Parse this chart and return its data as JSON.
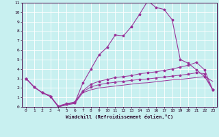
{
  "xlabel": "Windchill (Refroidissement éolien,°C)",
  "xlim": [
    -0.5,
    23.5
  ],
  "ylim": [
    0,
    11
  ],
  "xticks": [
    0,
    1,
    2,
    3,
    4,
    5,
    6,
    7,
    8,
    9,
    10,
    11,
    12,
    13,
    14,
    15,
    16,
    17,
    18,
    19,
    20,
    21,
    22,
    23
  ],
  "yticks": [
    0,
    1,
    2,
    3,
    4,
    5,
    6,
    7,
    8,
    9,
    10,
    11
  ],
  "background_color": "#c8f0f0",
  "grid_color": "#ffffff",
  "line_color": "#993399",
  "line1_y": [
    3.0,
    2.1,
    1.5,
    1.2,
    0.0,
    0.2,
    0.35,
    1.5,
    1.8,
    2.0,
    2.1,
    2.2,
    2.3,
    2.4,
    2.5,
    2.55,
    2.65,
    2.75,
    2.85,
    2.9,
    3.0,
    3.1,
    3.2,
    2.7
  ],
  "line2_y": [
    3.0,
    2.1,
    1.5,
    1.1,
    0.1,
    0.35,
    0.5,
    1.7,
    2.4,
    2.7,
    2.9,
    3.1,
    3.2,
    3.3,
    3.5,
    3.6,
    3.7,
    3.85,
    4.0,
    4.2,
    4.4,
    4.7,
    3.9,
    1.8
  ],
  "line3_y": [
    3.0,
    2.1,
    1.5,
    1.1,
    0.0,
    0.3,
    0.4,
    2.5,
    4.0,
    5.5,
    6.3,
    7.6,
    7.5,
    8.5,
    9.8,
    11.2,
    10.5,
    10.3,
    9.2,
    5.0,
    4.6,
    3.9,
    3.2,
    1.8
  ],
  "line4_y": [
    3.0,
    2.1,
    1.5,
    1.1,
    0.0,
    0.3,
    0.45,
    1.6,
    2.1,
    2.35,
    2.5,
    2.6,
    2.7,
    2.8,
    2.9,
    2.95,
    3.05,
    3.15,
    3.25,
    3.35,
    3.45,
    3.6,
    3.5,
    1.8
  ]
}
